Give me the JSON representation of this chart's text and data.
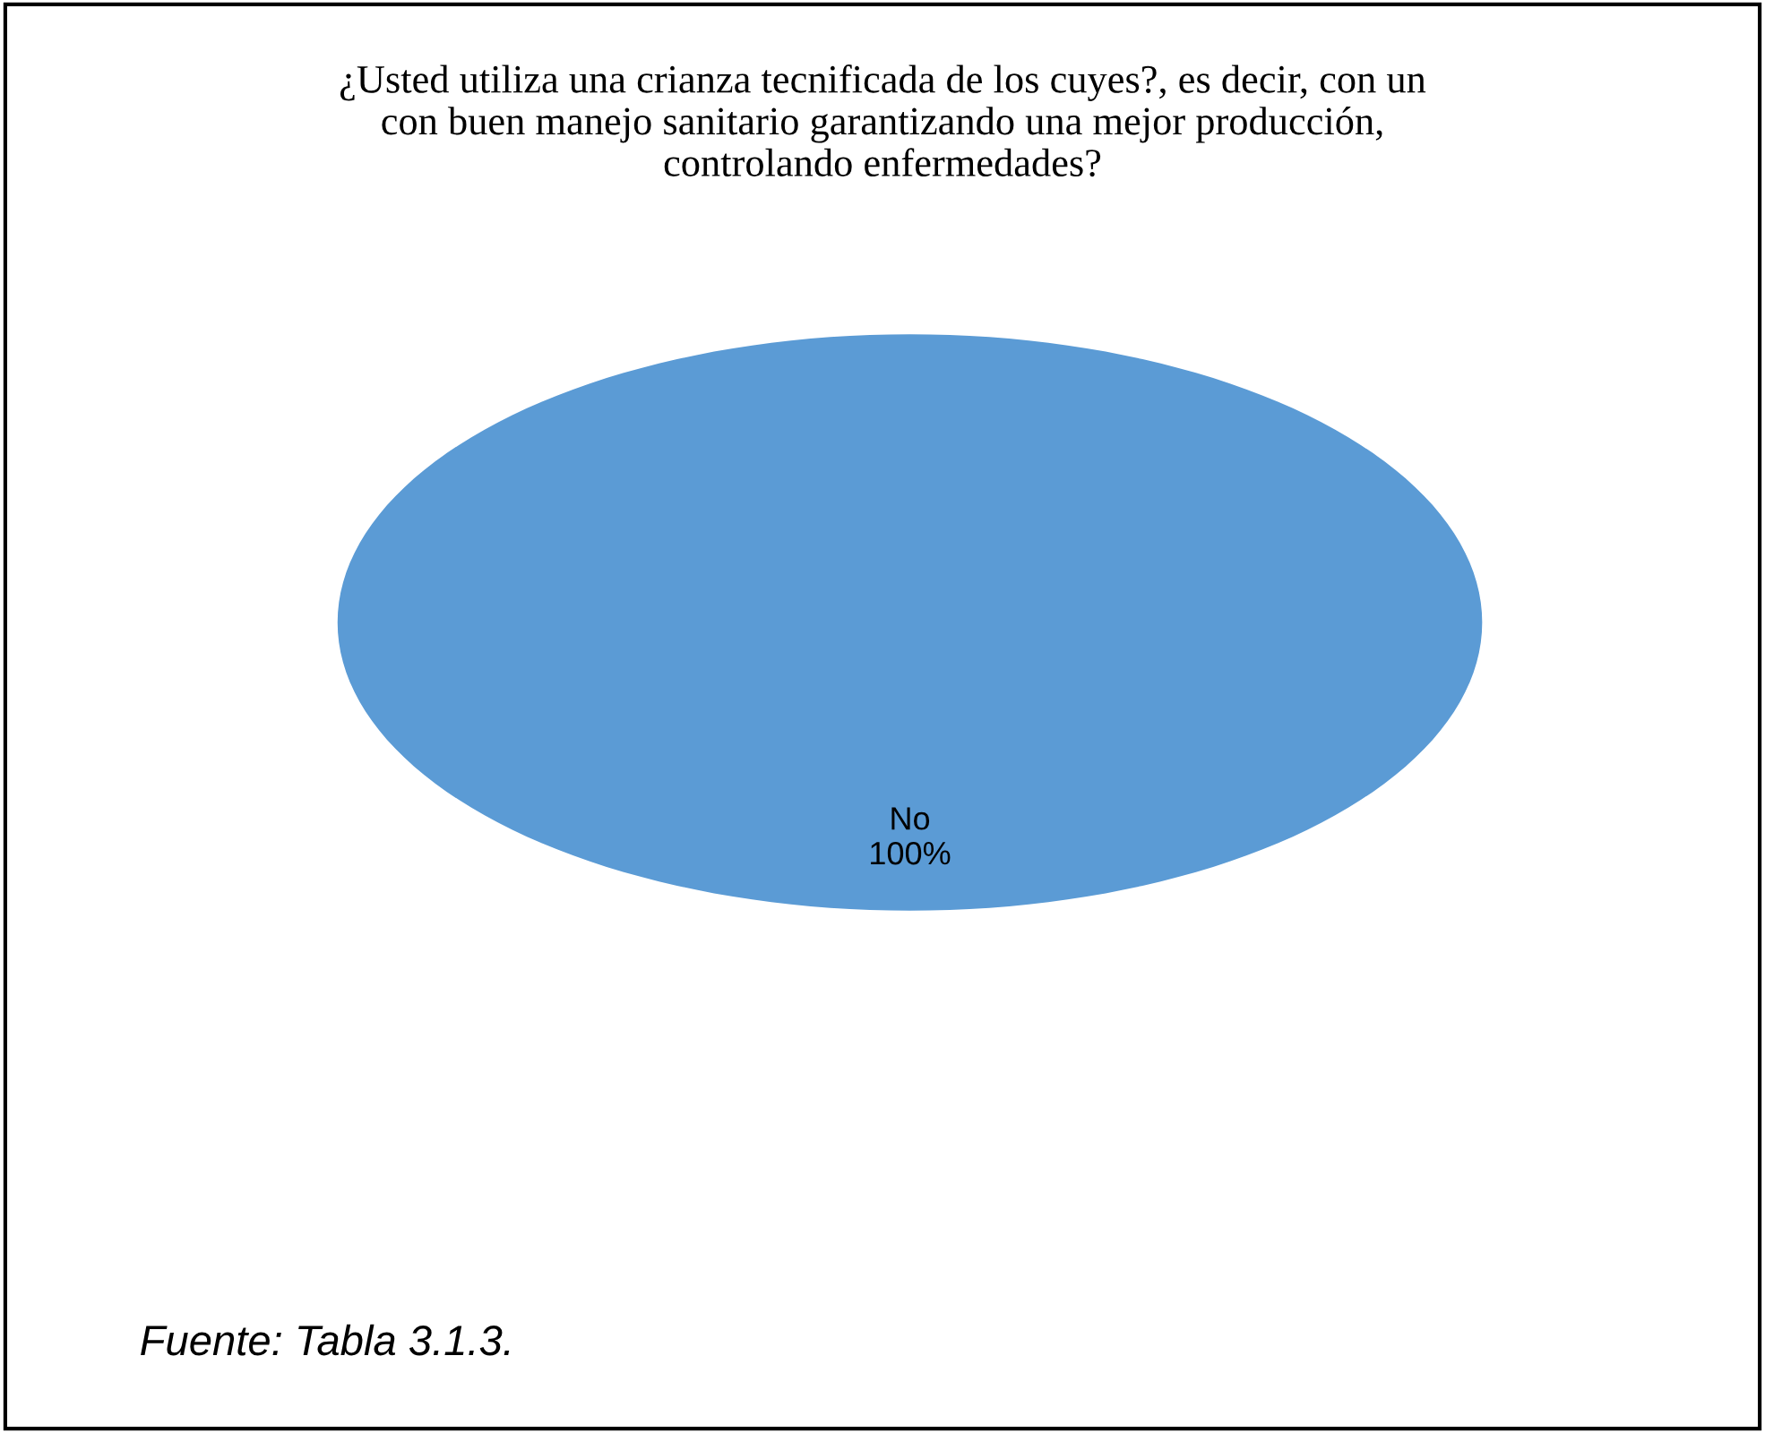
{
  "chart_data": {
    "type": "pie",
    "title": "¿Usted utiliza una crianza tecnificada de los cuyes?, es decir, con un\ncon buen manejo sanitario garantizando una mejor producción,\ncontrolando enfermedades?",
    "categories": [
      "No"
    ],
    "values": [
      100
    ],
    "colors": [
      "#5b9bd5"
    ],
    "value_labels": [
      "100%"
    ],
    "legend": false,
    "annotations": [
      "Fuente: Tabla 3.1.3."
    ]
  }
}
